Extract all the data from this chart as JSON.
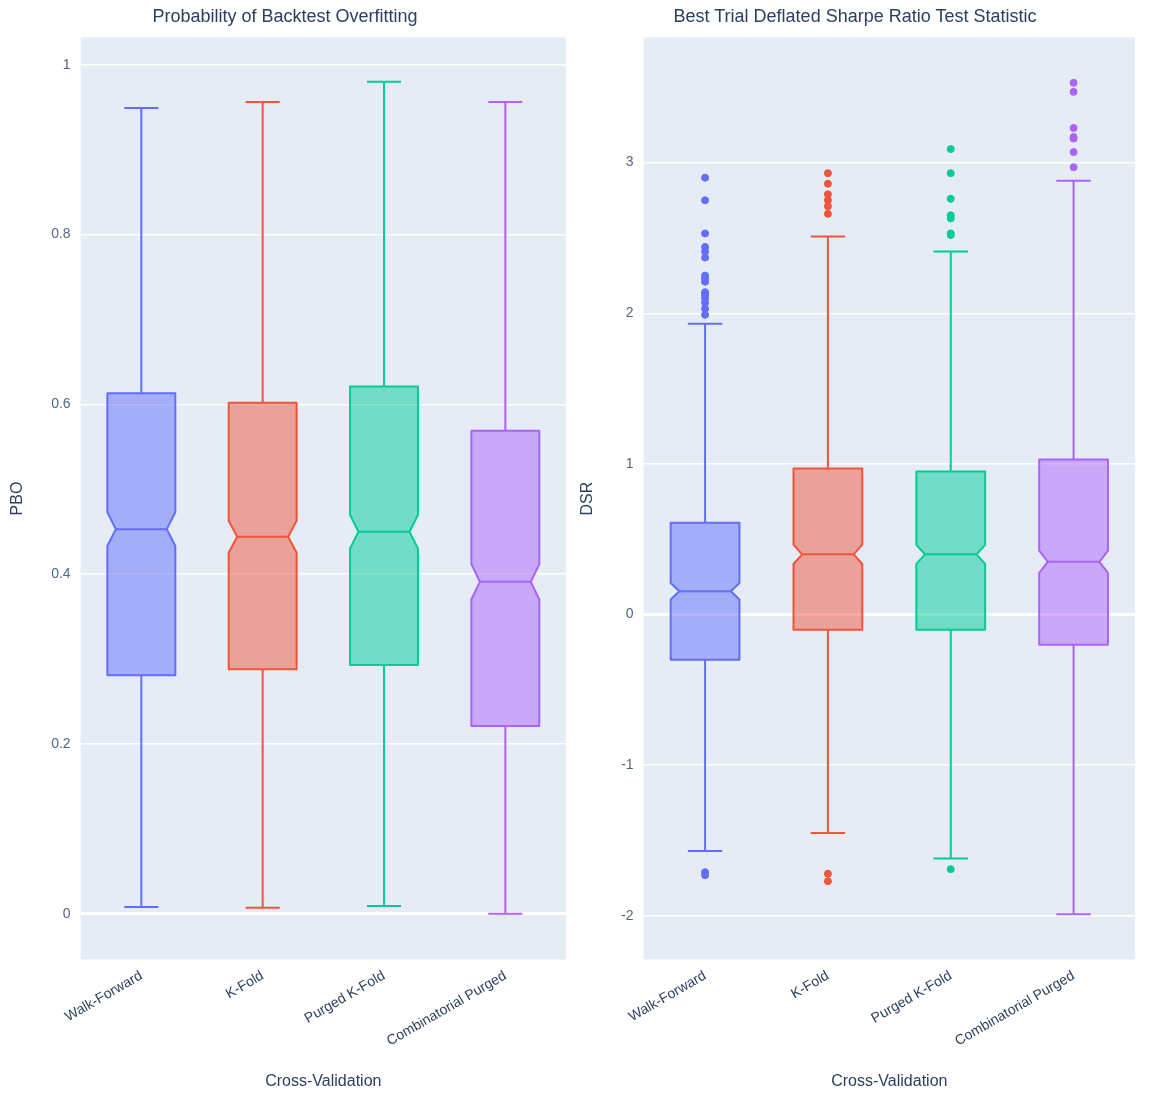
{
  "chart_data": [
    {
      "type": "box",
      "title": "Probability of Backtest Overfitting",
      "xlabel": "Cross-Validation",
      "ylabel": "PBO",
      "categories": [
        "Walk-Forward",
        "K-Fold",
        "Purged K-Fold",
        "Combinatorial Purged"
      ],
      "colors": [
        "#636efa",
        "#ef553b",
        "#00cc96",
        "#ab63fa"
      ],
      "boxes": [
        {
          "low": 0.008,
          "q1": 0.281,
          "median": 0.453,
          "q3": 0.613,
          "high": 0.949
        },
        {
          "low": 0.007,
          "q1": 0.288,
          "median": 0.444,
          "q3": 0.602,
          "high": 0.956
        },
        {
          "low": 0.009,
          "q1": 0.293,
          "median": 0.45,
          "q3": 0.621,
          "high": 0.98
        },
        {
          "low": 0,
          "q1": 0.221,
          "median": 0.391,
          "q3": 0.569,
          "high": 0.956
        }
      ],
      "ylim": [
        -0.054,
        1.032
      ],
      "yticks": [
        0,
        0.2,
        0.4,
        0.6,
        0.8,
        1
      ],
      "grid": "y"
    },
    {
      "type": "box",
      "title": "Best Trial Deflated Sharpe Ratio Test Statistic",
      "xlabel": "Cross-Validation",
      "ylabel": "DSR",
      "categories": [
        "Walk-Forward",
        "K-Fold",
        "Purged K-Fold",
        "Combinatorial Purged"
      ],
      "colors": [
        "#636efa",
        "#ef553b",
        "#00cc96",
        "#ab63fa"
      ],
      "boxes": [
        {
          "low": -1.57,
          "q1": -0.3,
          "median": 0.155,
          "q3": 0.61,
          "high": 1.93,
          "outliers": [
            2.9,
            2.75,
            2.53,
            2.44,
            2.41,
            2.37,
            2.25,
            2.23,
            2.21,
            2.14,
            2.12,
            2.1,
            2.07,
            2.03,
            1.99,
            -1.71,
            -1.73
          ]
        },
        {
          "low": -1.45,
          "q1": -0.1,
          "median": 0.4,
          "q3": 0.97,
          "high": 2.51,
          "outliers": [
            2.93,
            2.86,
            2.79,
            2.75,
            2.71,
            2.66,
            -1.72,
            -1.77
          ]
        },
        {
          "low": -1.62,
          "q1": -0.1,
          "median": 0.4,
          "q3": 0.95,
          "high": 2.41,
          "outliers": [
            3.09,
            2.93,
            2.76,
            2.65,
            2.63,
            2.53,
            2.52,
            -1.69
          ]
        },
        {
          "low": -1.99,
          "q1": -0.2,
          "median": 0.35,
          "q3": 1.03,
          "high": 2.88,
          "outliers": [
            3.53,
            3.47,
            3.23,
            3.17,
            3.16,
            3.07,
            2.97
          ]
        }
      ],
      "ylim": [
        -2.29,
        3.83
      ],
      "yticks": [
        -2,
        -1,
        0,
        1,
        2,
        3
      ],
      "grid": "y"
    }
  ]
}
